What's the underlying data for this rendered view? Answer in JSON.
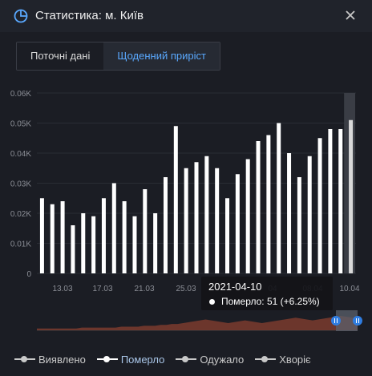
{
  "header": {
    "title": "Статистика: м. Київ",
    "icon": "pie-chart-icon",
    "close_icon": "close-icon"
  },
  "tabs": [
    {
      "label": "Поточні дані",
      "active": false
    },
    {
      "label": "Щоденний приріст",
      "active": true
    }
  ],
  "chart_data": {
    "type": "bar",
    "y_ticks": [
      "0",
      "0.01K",
      "0.02K",
      "0.03K",
      "0.04K",
      "0.05K",
      "0.06K"
    ],
    "ylim": [
      0,
      60
    ],
    "x_tick_labels": [
      "13.03",
      "17.03",
      "21.03",
      "25.03",
      "",
      "04",
      "08.04",
      "10.04"
    ],
    "values": [
      25,
      23,
      24,
      16,
      20,
      19,
      25,
      30,
      24,
      19,
      28,
      20,
      32,
      49,
      35,
      37,
      39,
      35,
      25,
      33,
      38,
      44,
      46,
      50,
      40,
      32,
      39,
      45,
      48,
      48,
      51
    ],
    "highlight_index": 30,
    "bar_color": "#ffffff",
    "highlight_color": "#d9d9d9",
    "grid": true
  },
  "tooltip": {
    "date": "2021-04-10",
    "line": "Померло: 51 (+6.25%)"
  },
  "overview": {
    "values": [
      2,
      2,
      2,
      2,
      2,
      2,
      2,
      2,
      3,
      3,
      3,
      3,
      3,
      3,
      3,
      4,
      4,
      4,
      4,
      5,
      5,
      5,
      6,
      6,
      7,
      7,
      8,
      9,
      10,
      11,
      12,
      11,
      10,
      9,
      8,
      9,
      10,
      11,
      10,
      9,
      8,
      9,
      10,
      11,
      12,
      13,
      14,
      13,
      12,
      11,
      12,
      13,
      14,
      15,
      16,
      15,
      14,
      13
    ],
    "color": "#7a3b2e"
  },
  "legend": [
    {
      "label": "Виявлено",
      "active": false
    },
    {
      "label": "Померло",
      "active": true
    },
    {
      "label": "Одужало",
      "active": false
    },
    {
      "label": "Хворіє",
      "active": false
    }
  ],
  "colors": {
    "accent": "#5aa9ff",
    "handle": "#2f7de1"
  }
}
